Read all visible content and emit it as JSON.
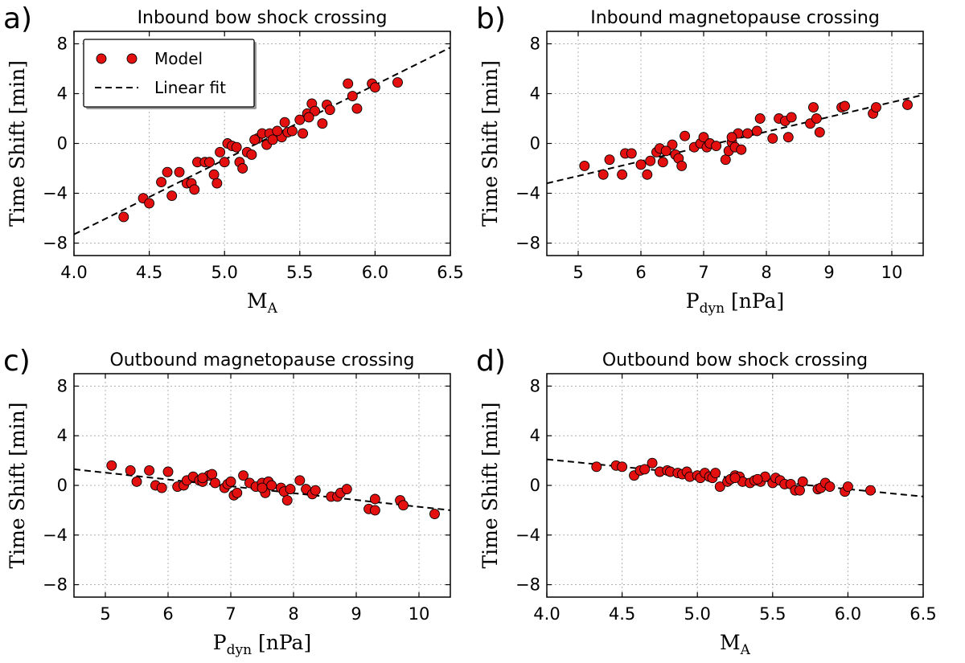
{
  "colors": {
    "marker": "#e41010",
    "line": "#000000",
    "grid": "#b0b0b0"
  },
  "legend": {
    "model_label": "Model",
    "fit_label": "Linear fit",
    "placement": "upper-left of panel a"
  },
  "chart_data": [
    {
      "type": "scatter",
      "panel": "a)",
      "title": "Inbound bow shock crossing",
      "xlabel": "M",
      "xlabel_sub": "A",
      "ylabel": "Time Shift",
      "ylabel_unit": "[min]",
      "xlim": [
        4.0,
        6.5
      ],
      "ylim": [
        -9,
        9
      ],
      "xticks": [
        4.0,
        4.5,
        5.0,
        5.5,
        6.0,
        6.5
      ],
      "xtick_labels": [
        "4.0",
        "4.5",
        "5.0",
        "5.5",
        "6.0",
        "6.5"
      ],
      "yticks": [
        -8,
        -4,
        0,
        4,
        8
      ],
      "ytick_labels": [
        "−8",
        "−4",
        "0",
        "4",
        "8"
      ],
      "fit": {
        "x": [
          4.0,
          6.5
        ],
        "y": [
          -7.3,
          7.7
        ]
      },
      "points": [
        [
          4.33,
          -5.9
        ],
        [
          4.46,
          -4.4
        ],
        [
          4.5,
          -4.8
        ],
        [
          4.58,
          -3.1
        ],
        [
          4.62,
          -2.3
        ],
        [
          4.65,
          -4.2
        ],
        [
          4.7,
          -2.3
        ],
        [
          4.75,
          -3.2
        ],
        [
          4.78,
          -3.2
        ],
        [
          4.8,
          -3.7
        ],
        [
          4.82,
          -1.5
        ],
        [
          4.87,
          -1.5
        ],
        [
          4.9,
          -1.5
        ],
        [
          4.93,
          -2.5
        ],
        [
          4.95,
          -3.2
        ],
        [
          4.97,
          -0.7
        ],
        [
          5.0,
          -1.5
        ],
        [
          5.02,
          0.0
        ],
        [
          5.05,
          -0.2
        ],
        [
          5.08,
          -0.3
        ],
        [
          5.1,
          -1.5
        ],
        [
          5.12,
          -2.0
        ],
        [
          5.15,
          -0.7
        ],
        [
          5.18,
          -0.9
        ],
        [
          5.22,
          0.4
        ],
        [
          5.25,
          0.8
        ],
        [
          5.28,
          -0.1
        ],
        [
          5.3,
          0.8
        ],
        [
          5.32,
          0.3
        ],
        [
          5.38,
          0.5
        ],
        [
          5.4,
          1.7
        ],
        [
          5.42,
          0.9
        ],
        [
          5.45,
          1.0
        ],
        [
          5.5,
          1.9
        ],
        [
          5.52,
          0.8
        ],
        [
          5.55,
          2.4
        ],
        [
          5.58,
          3.2
        ],
        [
          5.6,
          2.6
        ],
        [
          5.65,
          1.6
        ],
        [
          5.68,
          3.1
        ],
        [
          5.7,
          2.7
        ],
        [
          5.82,
          4.8
        ],
        [
          5.85,
          3.8
        ],
        [
          5.88,
          2.8
        ],
        [
          5.98,
          4.8
        ],
        [
          6.0,
          4.5
        ],
        [
          6.15,
          4.9
        ],
        [
          5.35,
          1.0
        ],
        [
          5.56,
          2.1
        ],
        [
          5.2,
          0.3
        ]
      ]
    },
    {
      "type": "scatter",
      "panel": "b)",
      "title": "Inbound magnetopause crossing",
      "xlabel": "P",
      "xlabel_sub": "dyn",
      "xlabel_unit": "[nPa]",
      "ylabel": "Time Shift",
      "ylabel_unit": "[min]",
      "xlim": [
        4.5,
        10.5
      ],
      "ylim": [
        -9,
        9
      ],
      "xticks": [
        5,
        6,
        7,
        8,
        9,
        10
      ],
      "xtick_labels": [
        "5",
        "6",
        "7",
        "8",
        "9",
        "10"
      ],
      "yticks": [
        -8,
        -4,
        0,
        4,
        8
      ],
      "ytick_labels": [
        "−8",
        "−4",
        "0",
        "4",
        "8"
      ],
      "fit": {
        "x": [
          4.5,
          10.5
        ],
        "y": [
          -3.2,
          3.9
        ]
      },
      "points": [
        [
          5.1,
          -1.8
        ],
        [
          5.4,
          -2.5
        ],
        [
          5.5,
          -1.3
        ],
        [
          5.7,
          -2.5
        ],
        [
          5.75,
          -0.8
        ],
        [
          5.85,
          -0.8
        ],
        [
          6.0,
          -1.7
        ],
        [
          6.1,
          -2.5
        ],
        [
          6.15,
          -1.4
        ],
        [
          6.25,
          -0.7
        ],
        [
          6.3,
          -0.4
        ],
        [
          6.35,
          -1.5
        ],
        [
          6.5,
          -0.1
        ],
        [
          6.55,
          -0.9
        ],
        [
          6.6,
          -1.2
        ],
        [
          6.65,
          -1.8
        ],
        [
          6.7,
          0.6
        ],
        [
          6.85,
          -0.3
        ],
        [
          6.95,
          0.0
        ],
        [
          7.0,
          0.5
        ],
        [
          7.05,
          -0.3
        ],
        [
          7.1,
          0.0
        ],
        [
          7.2,
          -0.2
        ],
        [
          7.35,
          -1.3
        ],
        [
          7.4,
          -0.6
        ],
        [
          7.45,
          0.1
        ],
        [
          7.5,
          -0.3
        ],
        [
          7.55,
          0.8
        ],
        [
          7.6,
          -0.5
        ],
        [
          7.7,
          0.8
        ],
        [
          7.85,
          1.0
        ],
        [
          7.9,
          2.0
        ],
        [
          8.1,
          0.4
        ],
        [
          8.2,
          2.0
        ],
        [
          8.3,
          1.8
        ],
        [
          8.35,
          0.5
        ],
        [
          8.4,
          2.1
        ],
        [
          8.7,
          1.6
        ],
        [
          8.75,
          2.9
        ],
        [
          8.8,
          2.0
        ],
        [
          8.85,
          0.9
        ],
        [
          9.2,
          2.9
        ],
        [
          9.25,
          3.0
        ],
        [
          9.7,
          2.4
        ],
        [
          9.75,
          2.9
        ],
        [
          10.25,
          3.1
        ],
        [
          7.45,
          0.5
        ],
        [
          6.4,
          -0.6
        ]
      ]
    },
    {
      "type": "scatter",
      "panel": "c)",
      "title": "Outbound magnetopause crossing",
      "xlabel": "P",
      "xlabel_sub": "dyn",
      "xlabel_unit": "[nPa]",
      "ylabel": "Time Shift",
      "ylabel_unit": "[min]",
      "xlim": [
        4.5,
        10.5
      ],
      "ylim": [
        -9,
        9
      ],
      "xticks": [
        5,
        6,
        7,
        8,
        9,
        10
      ],
      "xtick_labels": [
        "5",
        "6",
        "7",
        "8",
        "9",
        "10"
      ],
      "yticks": [
        -8,
        -4,
        0,
        4,
        8
      ],
      "ytick_labels": [
        "−8",
        "−4",
        "0",
        "4",
        "8"
      ],
      "fit": {
        "x": [
          4.5,
          10.5
        ],
        "y": [
          1.3,
          -2.0
        ]
      },
      "points": [
        [
          5.1,
          1.6
        ],
        [
          5.4,
          1.2
        ],
        [
          5.5,
          0.3
        ],
        [
          5.7,
          1.2
        ],
        [
          5.8,
          0.0
        ],
        [
          5.9,
          -0.2
        ],
        [
          6.0,
          1.1
        ],
        [
          6.15,
          -0.1
        ],
        [
          6.25,
          0.0
        ],
        [
          6.3,
          0.4
        ],
        [
          6.4,
          0.7
        ],
        [
          6.5,
          0.4
        ],
        [
          6.55,
          0.3
        ],
        [
          6.65,
          0.8
        ],
        [
          6.7,
          0.9
        ],
        [
          6.75,
          0.2
        ],
        [
          6.9,
          -0.2
        ],
        [
          6.95,
          0.1
        ],
        [
          7.0,
          0.3
        ],
        [
          7.05,
          -0.8
        ],
        [
          7.1,
          -0.6
        ],
        [
          7.2,
          0.8
        ],
        [
          7.3,
          0.2
        ],
        [
          7.4,
          -0.1
        ],
        [
          7.5,
          0.2
        ],
        [
          7.55,
          -0.6
        ],
        [
          7.6,
          0.3
        ],
        [
          7.65,
          0.0
        ],
        [
          7.8,
          -0.2
        ],
        [
          7.85,
          -0.5
        ],
        [
          7.9,
          -1.2
        ],
        [
          7.95,
          -0.3
        ],
        [
          8.1,
          0.4
        ],
        [
          8.2,
          -0.3
        ],
        [
          8.3,
          -0.7
        ],
        [
          8.35,
          -0.4
        ],
        [
          8.6,
          -0.9
        ],
        [
          8.7,
          -0.9
        ],
        [
          8.75,
          -0.6
        ],
        [
          8.85,
          -0.3
        ],
        [
          9.2,
          -1.9
        ],
        [
          9.3,
          -2.0
        ],
        [
          9.3,
          -1.1
        ],
        [
          9.7,
          -1.2
        ],
        [
          9.75,
          -1.6
        ],
        [
          10.25,
          -2.3
        ],
        [
          7.5,
          -0.2
        ],
        [
          6.55,
          0.6
        ]
      ]
    },
    {
      "type": "scatter",
      "panel": "d)",
      "title": "Outbound bow shock crossing",
      "xlabel": "M",
      "xlabel_sub": "A",
      "ylabel": "Time Shift",
      "ylabel_unit": "[min]",
      "xlim": [
        4.0,
        6.5
      ],
      "ylim": [
        -9,
        9
      ],
      "xticks": [
        4.0,
        4.5,
        5.0,
        5.5,
        6.0,
        6.5
      ],
      "xtick_labels": [
        "4.0",
        "4.5",
        "5.0",
        "5.5",
        "6.0",
        "6.5"
      ],
      "yticks": [
        -8,
        -4,
        0,
        4,
        8
      ],
      "ytick_labels": [
        "−8",
        "−4",
        "0",
        "4",
        "8"
      ],
      "fit": {
        "x": [
          4.0,
          6.5
        ],
        "y": [
          2.1,
          -0.9
        ]
      },
      "points": [
        [
          4.33,
          1.5
        ],
        [
          4.46,
          1.6
        ],
        [
          4.5,
          1.5
        ],
        [
          4.58,
          0.8
        ],
        [
          4.62,
          1.2
        ],
        [
          4.65,
          1.3
        ],
        [
          4.7,
          1.8
        ],
        [
          4.75,
          1.1
        ],
        [
          4.8,
          1.2
        ],
        [
          4.82,
          1.1
        ],
        [
          4.87,
          1.0
        ],
        [
          4.9,
          0.9
        ],
        [
          4.93,
          1.1
        ],
        [
          4.95,
          0.7
        ],
        [
          5.0,
          0.8
        ],
        [
          5.02,
          0.6
        ],
        [
          5.05,
          1.0
        ],
        [
          5.08,
          0.7
        ],
        [
          5.1,
          0.6
        ],
        [
          5.12,
          1.0
        ],
        [
          5.15,
          -0.1
        ],
        [
          5.2,
          0.3
        ],
        [
          5.22,
          0.5
        ],
        [
          5.25,
          0.8
        ],
        [
          5.28,
          0.7
        ],
        [
          5.3,
          0.3
        ],
        [
          5.35,
          0.2
        ],
        [
          5.38,
          0.4
        ],
        [
          5.42,
          0.3
        ],
        [
          5.45,
          0.7
        ],
        [
          5.5,
          0.2
        ],
        [
          5.52,
          0.6
        ],
        [
          5.55,
          0.4
        ],
        [
          5.58,
          0.1
        ],
        [
          5.62,
          0.1
        ],
        [
          5.65,
          -0.4
        ],
        [
          5.68,
          -0.4
        ],
        [
          5.7,
          0.3
        ],
        [
          5.8,
          -0.3
        ],
        [
          5.82,
          -0.2
        ],
        [
          5.85,
          0.2
        ],
        [
          5.88,
          -0.1
        ],
        [
          5.98,
          -0.5
        ],
        [
          6.0,
          -0.1
        ],
        [
          6.15,
          -0.4
        ],
        [
          5.25,
          0.6
        ],
        [
          5.4,
          0.5
        ]
      ]
    }
  ]
}
